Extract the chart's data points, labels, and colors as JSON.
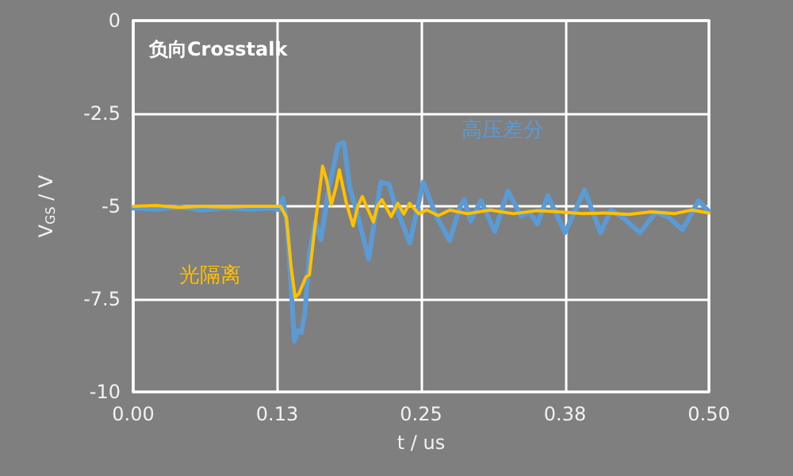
{
  "chart_data": {
    "type": "line",
    "title": "负向Crosstalk",
    "xlabel": "t / us",
    "ylabel": "V$_{GS}$ / V",
    "xlim": [
      0,
      0.5
    ],
    "xticks": [
      {
        "value": 0,
        "label": "0.00"
      },
      {
        "value": 0.125,
        "label": "0.13"
      },
      {
        "value": 0.25,
        "label": "0.25"
      },
      {
        "value": 0.375,
        "label": "0.38"
      },
      {
        "value": 0.5,
        "label": "0.50"
      }
    ],
    "ylim": [
      -10,
      0
    ],
    "yticks": [
      -10,
      -7.5,
      -5,
      -2.5,
      0
    ],
    "grid": true,
    "marker": "none",
    "series": [
      {
        "name": "高压差分",
        "color": "#5b9bd5",
        "x": [
          0,
          0.02,
          0.04,
          0.06,
          0.08,
          0.1,
          0.12,
          0.127,
          0.13,
          0.134,
          0.14,
          0.143,
          0.146,
          0.149,
          0.153,
          0.158,
          0.163,
          0.17,
          0.178,
          0.183,
          0.188,
          0.193,
          0.2045,
          0.21,
          0.215,
          0.222,
          0.227,
          0.2403,
          0.2518,
          0.263,
          0.2748,
          0.284,
          0.2876,
          0.293,
          0.302,
          0.314,
          0.3254,
          0.337,
          0.344,
          0.351,
          0.36,
          0.375,
          0.392,
          0.4058,
          0.415,
          0.425,
          0.44,
          0.454,
          0.465,
          0.477,
          0.491,
          0.5
        ],
        "values": [
          -5.05,
          -5.08,
          -5.02,
          -5.1,
          -5.05,
          -5.08,
          -5.05,
          -5.1,
          -4.78,
          -5.6,
          -8.63,
          -8.35,
          -8.4,
          -7.9,
          -6.3,
          -5.42,
          -5.9,
          -4.5,
          -3.35,
          -3.28,
          -4.5,
          -5.0,
          -6.42,
          -5.3,
          -4.35,
          -4.4,
          -4.92,
          -5.99,
          -4.35,
          -5.25,
          -5.92,
          -5.0,
          -4.82,
          -5.4,
          -4.85,
          -5.68,
          -4.59,
          -5.27,
          -5.15,
          -5.48,
          -4.71,
          -5.71,
          -4.56,
          -5.71,
          -5.1,
          -5.3,
          -5.71,
          -5.16,
          -5.3,
          -5.63,
          -4.85,
          -5.14
        ]
      },
      {
        "name": "光隔离",
        "color": "#ffc000",
        "x": [
          0,
          0.02,
          0.04,
          0.06,
          0.08,
          0.1,
          0.12,
          0.128,
          0.133,
          0.137,
          0.1406,
          0.144,
          0.15,
          0.153,
          0.158,
          0.1645,
          0.168,
          0.172,
          0.176,
          0.179,
          0.185,
          0.191,
          0.195,
          0.199,
          0.204,
          0.2086,
          0.212,
          0.216,
          0.224,
          0.2298,
          0.235,
          0.24,
          0.248,
          0.255,
          0.265,
          0.275,
          0.29,
          0.31,
          0.33,
          0.35,
          0.37,
          0.39,
          0.41,
          0.43,
          0.45,
          0.47,
          0.485,
          0.5
        ],
        "values": [
          -5.0,
          -4.98,
          -5.03,
          -5.0,
          -5.02,
          -5.0,
          -5.0,
          -5.0,
          -5.3,
          -6.6,
          -7.45,
          -7.35,
          -6.9,
          -6.85,
          -5.5,
          -3.92,
          -4.3,
          -4.96,
          -4.5,
          -4.02,
          -4.9,
          -5.53,
          -5.0,
          -4.74,
          -5.1,
          -5.42,
          -5.0,
          -4.82,
          -5.28,
          -4.92,
          -5.21,
          -4.92,
          -5.2,
          -5.1,
          -5.25,
          -5.1,
          -5.2,
          -5.1,
          -5.2,
          -5.12,
          -5.15,
          -5.2,
          -5.18,
          -5.22,
          -5.15,
          -5.2,
          -5.1,
          -5.18
        ]
      }
    ]
  }
}
